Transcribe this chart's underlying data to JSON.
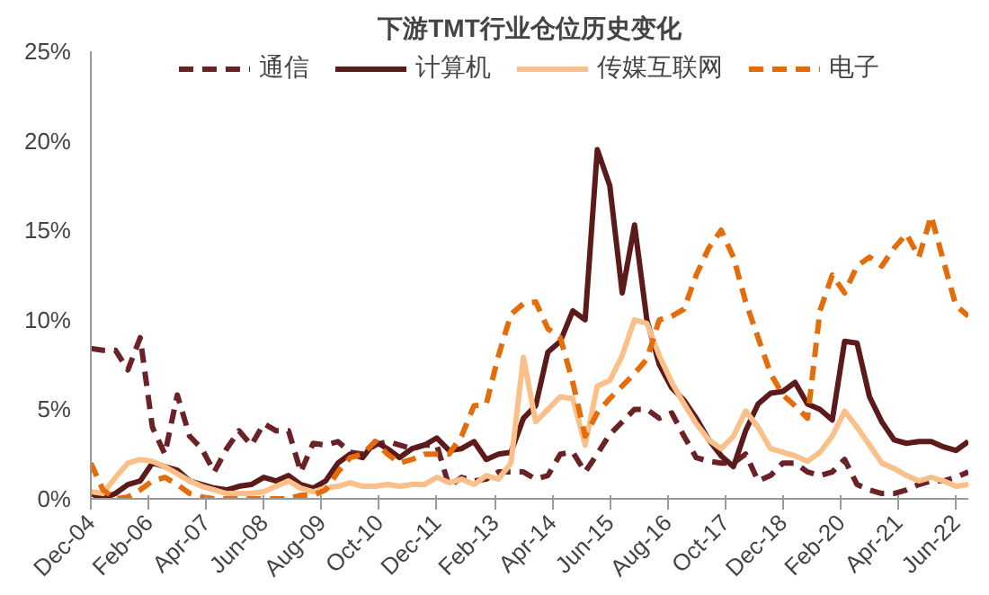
{
  "chart_data": {
    "type": "line",
    "title": "下游TMT行业仓位历史变化",
    "x": [
      "2004-12",
      "2005-03",
      "2005-06",
      "2005-09",
      "2005-12",
      "2006-03",
      "2006-06",
      "2006-09",
      "2006-12",
      "2007-03",
      "2007-06",
      "2007-09",
      "2007-12",
      "2008-03",
      "2008-06",
      "2008-09",
      "2008-12",
      "2009-03",
      "2009-06",
      "2009-09",
      "2009-12",
      "2010-03",
      "2010-06",
      "2010-09",
      "2010-12",
      "2011-03",
      "2011-06",
      "2011-09",
      "2011-12",
      "2012-03",
      "2012-06",
      "2012-09",
      "2012-12",
      "2013-03",
      "2013-06",
      "2013-09",
      "2013-12",
      "2014-03",
      "2014-06",
      "2014-09",
      "2014-12",
      "2015-03",
      "2015-06",
      "2015-09",
      "2015-12",
      "2016-03",
      "2016-06",
      "2016-09",
      "2016-12",
      "2017-03",
      "2017-06",
      "2017-09",
      "2017-12",
      "2018-03",
      "2018-06",
      "2018-09",
      "2018-12",
      "2019-03",
      "2019-06",
      "2019-09",
      "2019-12",
      "2020-03",
      "2020-06",
      "2020-09",
      "2020-12",
      "2021-03",
      "2021-06",
      "2021-09",
      "2021-12",
      "2022-03",
      "2022-06",
      "2022-09"
    ],
    "series": [
      {
        "name": "通信",
        "color": "#6b2226",
        "line_style": "dashed",
        "values": [
          8.4,
          8.3,
          8.3,
          7.2,
          9.0,
          4.0,
          2.5,
          5.8,
          3.5,
          2.8,
          1.5,
          2.8,
          3.8,
          3.0,
          4.2,
          3.8,
          3.8,
          1.5,
          3.1,
          3.0,
          3.2,
          2.6,
          2.5,
          3.0,
          3.2,
          3.0,
          2.8,
          3.0,
          3.0,
          0.7,
          1.2,
          1.0,
          1.1,
          1.5,
          1.5,
          1.5,
          1.1,
          1.3,
          2.5,
          2.6,
          1.5,
          2.5,
          3.6,
          4.3,
          5.0,
          5.0,
          4.5,
          4.8,
          3.5,
          2.3,
          2.1,
          2.0,
          2.0,
          2.5,
          1.0,
          1.3,
          2.0,
          2.0,
          1.5,
          1.3,
          1.5,
          2.2,
          0.8,
          0.5,
          0.3,
          0.3,
          0.5,
          0.8,
          1.0,
          1.0,
          1.2,
          1.5
        ]
      },
      {
        "name": "计算机",
        "color": "#5c1a1b",
        "line_style": "solid",
        "values": [
          0.3,
          0.0,
          0.3,
          0.8,
          1.0,
          2.0,
          1.8,
          1.6,
          1.0,
          0.8,
          0.6,
          0.5,
          0.7,
          0.8,
          1.2,
          1.0,
          1.3,
          0.8,
          0.6,
          1.0,
          2.0,
          2.5,
          2.3,
          3.2,
          2.8,
          2.3,
          2.8,
          3.0,
          3.4,
          2.7,
          2.8,
          3.2,
          2.2,
          2.5,
          2.6,
          4.5,
          5.2,
          8.2,
          8.8,
          10.5,
          10.0,
          19.5,
          17.5,
          11.5,
          15.3,
          10.0,
          7.5,
          6.2,
          5.5,
          4.5,
          3.3,
          2.4,
          1.8,
          3.8,
          5.3,
          5.9,
          6.0,
          6.5,
          5.3,
          5.0,
          4.4,
          8.8,
          8.7,
          5.7,
          4.3,
          3.3,
          3.1,
          3.2,
          3.2,
          2.9,
          2.7,
          3.2
        ]
      },
      {
        "name": "传媒互联网",
        "color": "#fbbf8a",
        "line_style": "solid",
        "values": [
          0.4,
          0.3,
          1.2,
          2.0,
          2.2,
          2.1,
          1.8,
          1.4,
          1.0,
          0.7,
          0.5,
          0.3,
          0.3,
          0.3,
          0.4,
          0.7,
          1.0,
          0.6,
          0.4,
          0.6,
          0.7,
          0.9,
          0.7,
          0.7,
          0.8,
          0.7,
          0.8,
          0.8,
          1.2,
          0.9,
          1.1,
          0.8,
          1.3,
          1.1,
          2.0,
          7.9,
          4.3,
          5.0,
          5.7,
          5.6,
          3.0,
          6.3,
          6.6,
          8.0,
          10.0,
          9.8,
          8.0,
          6.5,
          5.3,
          4.2,
          3.3,
          2.8,
          3.5,
          4.9,
          4.0,
          2.8,
          2.6,
          2.4,
          2.1,
          2.6,
          3.5,
          4.9,
          4.0,
          3.0,
          2.0,
          1.7,
          1.3,
          1.0,
          1.2,
          1.0,
          0.7,
          0.8
        ]
      },
      {
        "name": "电子",
        "color": "#e46c0a",
        "line_style": "dashed",
        "values": [
          2.0,
          0.5,
          0.0,
          0.1,
          0.5,
          1.0,
          1.2,
          0.8,
          0.3,
          0.1,
          0.0,
          0.0,
          0.0,
          0.0,
          0.0,
          0.0,
          0.0,
          0.2,
          0.2,
          0.5,
          1.5,
          2.3,
          2.5,
          3.2,
          2.5,
          2.0,
          2.2,
          2.5,
          2.5,
          2.5,
          3.5,
          5.2,
          5.3,
          8.0,
          10.3,
          10.9,
          11.0,
          9.5,
          9.0,
          6.5,
          3.5,
          4.8,
          5.6,
          6.3,
          7.0,
          7.8,
          10.0,
          10.2,
          10.6,
          12.5,
          14.0,
          15.0,
          13.5,
          11.0,
          9.0,
          7.0,
          5.8,
          5.2,
          4.5,
          10.5,
          12.5,
          11.5,
          13.0,
          13.5,
          13.0,
          14.0,
          14.8,
          13.5,
          15.8,
          13.3,
          10.8,
          10.2
        ]
      }
    ],
    "xlim": [
      "2004-12",
      "2022-09"
    ],
    "xticks": [
      {
        "value": "2004-12",
        "label": "Dec-04"
      },
      {
        "value": "2006-02",
        "label": "Feb-06"
      },
      {
        "value": "2007-04",
        "label": "Apr-07"
      },
      {
        "value": "2008-06",
        "label": "Jun-08"
      },
      {
        "value": "2009-08",
        "label": "Aug-09"
      },
      {
        "value": "2010-10",
        "label": "Oct-10"
      },
      {
        "value": "2011-12",
        "label": "Dec-11"
      },
      {
        "value": "2013-02",
        "label": "Feb-13"
      },
      {
        "value": "2014-04",
        "label": "Apr-14"
      },
      {
        "value": "2015-06",
        "label": "Jun-15"
      },
      {
        "value": "2016-08",
        "label": "Aug-16"
      },
      {
        "value": "2017-10",
        "label": "Oct-17"
      },
      {
        "value": "2018-12",
        "label": "Dec-18"
      },
      {
        "value": "2020-02",
        "label": "Feb-20"
      },
      {
        "value": "2021-04",
        "label": "Apr-21"
      },
      {
        "value": "2022-06",
        "label": "Jun-22"
      }
    ],
    "ylim": [
      0,
      25
    ],
    "yticks": [
      {
        "value": 0,
        "label": "0%"
      },
      {
        "value": 5,
        "label": "5%"
      },
      {
        "value": 10,
        "label": "10%"
      },
      {
        "value": 15,
        "label": "15%"
      },
      {
        "value": 20,
        "label": "20%"
      },
      {
        "value": 25,
        "label": "25%"
      }
    ],
    "grid": false,
    "legend": "top"
  }
}
